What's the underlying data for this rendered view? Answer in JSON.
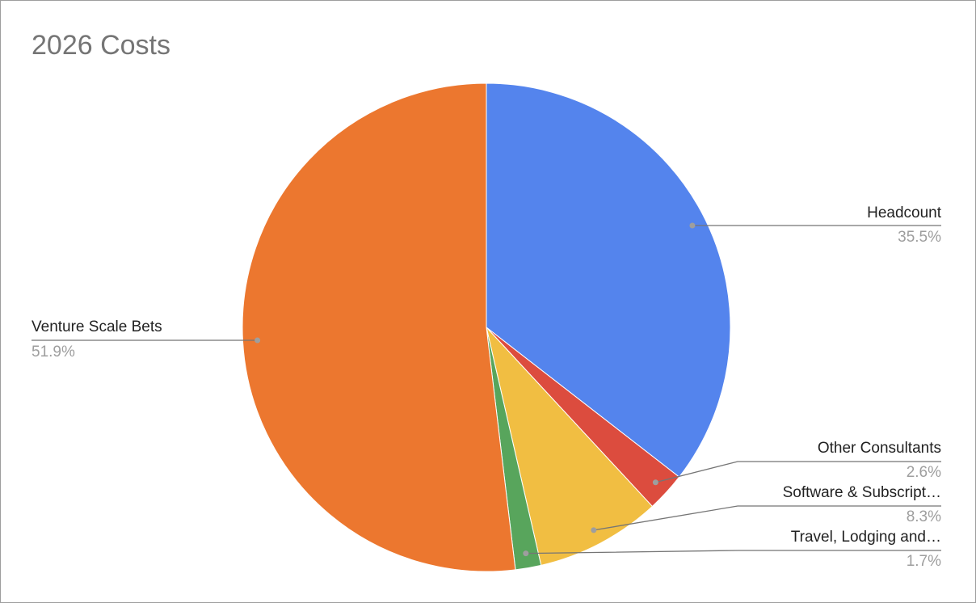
{
  "chart_data": {
    "type": "pie",
    "title": "2026 Costs",
    "categories": [
      "Headcount",
      "Other Consultants",
      "Software & Subscript…",
      "Travel, Lodging and…",
      "Venture Scale Bets"
    ],
    "values": [
      35.5,
      2.6,
      8.3,
      1.7,
      51.9
    ],
    "value_labels": [
      "35.5%",
      "2.6%",
      "8.3%",
      "1.7%",
      "51.9%"
    ],
    "colors": [
      "#5484ed",
      "#dc4c3e",
      "#f1be42",
      "#58a55c",
      "#ec772f"
    ]
  }
}
